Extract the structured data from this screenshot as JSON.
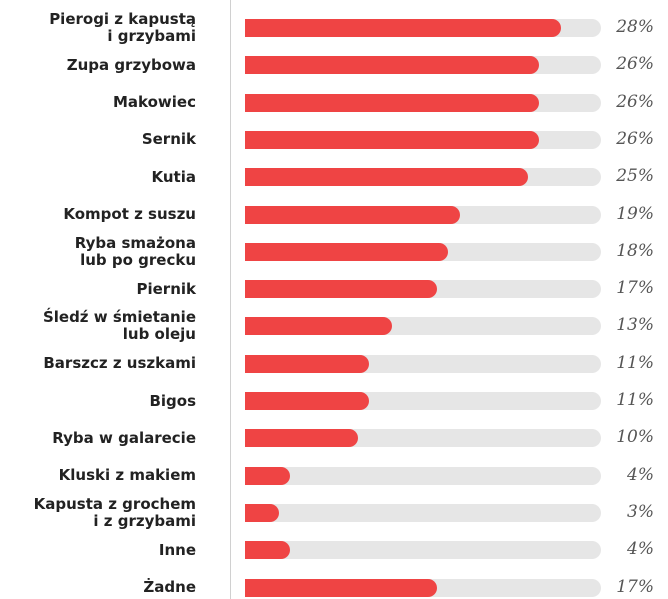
{
  "chart_data": {
    "type": "bar",
    "orientation": "horizontal",
    "color": "#ef4444",
    "categories": [
      "Pierogi z kapustą\ni grzybami",
      "Zupa grzybowa",
      "Makowiec",
      "Sernik",
      "Kutia",
      "Kompot z suszu",
      "Ryba smażona\nlub po grecku",
      "Piernik",
      "Śledź w śmietanie\nlub oleju",
      "Barszcz z uszkami",
      "Bigos",
      "Ryba w galarecie",
      "Kluski z makiem",
      "Kapusta z grochem\ni z grzybami",
      "Inne",
      "Żadne"
    ],
    "values": [
      28,
      26,
      26,
      26,
      25,
      19,
      18,
      17,
      13,
      11,
      11,
      10,
      4,
      3,
      4,
      17
    ],
    "value_labels": [
      "28%",
      "26%",
      "26%",
      "26%",
      "25%",
      "19%",
      "18%",
      "17%",
      "13%",
      "11%",
      "11%",
      "10%",
      "4%",
      "3%",
      "4%",
      "17%"
    ]
  }
}
